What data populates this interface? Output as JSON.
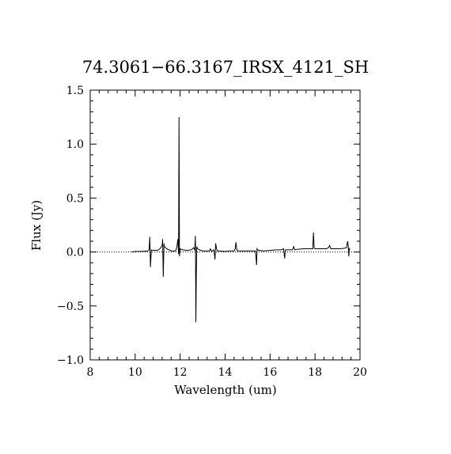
{
  "chart_data": {
    "type": "line",
    "title": "74.3061−66.3167_IRSX_4121_SH",
    "xlabel": "Wavelength (um)",
    "ylabel": "Flux (Jy)",
    "xlim": [
      8,
      20
    ],
    "ylim": [
      -1.0,
      1.5
    ],
    "x_ticks": [
      8,
      10,
      12,
      14,
      16,
      18,
      20
    ],
    "x_tick_labels": [
      "8",
      "10",
      "12",
      "14",
      "16",
      "18",
      "20"
    ],
    "y_ticks": [
      -1.0,
      -0.5,
      0.0,
      0.5,
      1.0,
      1.5
    ],
    "y_tick_labels": [
      "−1.0",
      "−0.5",
      "0.0",
      "0.5",
      "1.0",
      "1.5"
    ],
    "x_minor_step": 0.4,
    "y_minor_step": 0.1,
    "grid": false,
    "legend": "none",
    "zero_reference": {
      "y": 0.0,
      "style": "dotted"
    },
    "colors": {
      "line": "#000000",
      "axes": "#000000",
      "background": "#ffffff"
    },
    "series": [
      {
        "x": [
          9.85,
          10.0,
          10.3,
          10.55,
          10.62,
          10.65,
          10.68,
          10.72,
          10.8,
          11.0,
          11.1,
          11.2,
          11.22,
          11.25,
          11.28,
          11.3,
          11.4,
          11.6,
          11.8,
          11.85,
          11.9,
          11.93,
          11.95,
          11.97,
          12.0,
          12.1,
          12.3,
          12.5,
          12.6,
          12.65,
          12.68,
          12.7,
          12.72,
          12.74,
          12.78,
          12.85,
          13.0,
          13.2,
          13.3,
          13.35,
          13.4,
          13.5,
          13.55,
          13.58,
          13.62,
          13.65,
          13.75,
          14.0,
          14.2,
          14.3,
          14.4,
          14.45,
          14.48,
          14.52,
          14.55,
          14.7,
          14.9,
          15.2,
          15.35,
          15.4,
          15.42,
          15.45,
          15.5,
          15.7,
          16.0,
          16.3,
          16.5,
          16.6,
          16.65,
          16.68,
          16.72,
          16.8,
          17.0,
          17.05,
          17.1,
          17.2,
          17.5,
          17.8,
          17.9,
          17.93,
          17.96,
          18.0,
          18.03,
          18.1,
          18.3,
          18.5,
          18.6,
          18.65,
          18.7,
          18.75,
          18.9,
          19.1,
          19.3,
          19.4,
          19.45,
          19.48,
          19.5,
          19.52,
          19.55
        ],
        "y": [
          0.0,
          0.005,
          0.005,
          0.01,
          0.02,
          0.14,
          -0.14,
          0.02,
          0.015,
          0.015,
          0.03,
          0.06,
          0.12,
          -0.23,
          0.08,
          0.05,
          0.03,
          0.01,
          0.01,
          0.04,
          0.12,
          -0.02,
          1.25,
          -0.04,
          0.03,
          0.02,
          0.015,
          0.02,
          0.04,
          0.02,
          0.15,
          -0.65,
          -0.2,
          0.05,
          0.03,
          0.02,
          0.01,
          0.01,
          0.01,
          0.03,
          0.005,
          0.02,
          -0.07,
          0.08,
          0.03,
          0.01,
          0.01,
          0.005,
          0.01,
          0.01,
          0.01,
          0.03,
          0.09,
          0.02,
          0.01,
          0.01,
          0.01,
          0.01,
          0.01,
          -0.12,
          0.03,
          0.02,
          0.015,
          0.01,
          0.015,
          0.02,
          0.02,
          0.03,
          -0.06,
          0.02,
          0.02,
          0.02,
          0.02,
          0.05,
          0.02,
          0.025,
          0.03,
          0.03,
          0.03,
          0.18,
          0.04,
          0.03,
          0.03,
          0.03,
          0.03,
          0.03,
          0.04,
          0.06,
          0.03,
          0.03,
          0.03,
          0.03,
          0.035,
          0.04,
          0.1,
          0.05,
          -0.04,
          0.03,
          0.02
        ]
      }
    ]
  }
}
